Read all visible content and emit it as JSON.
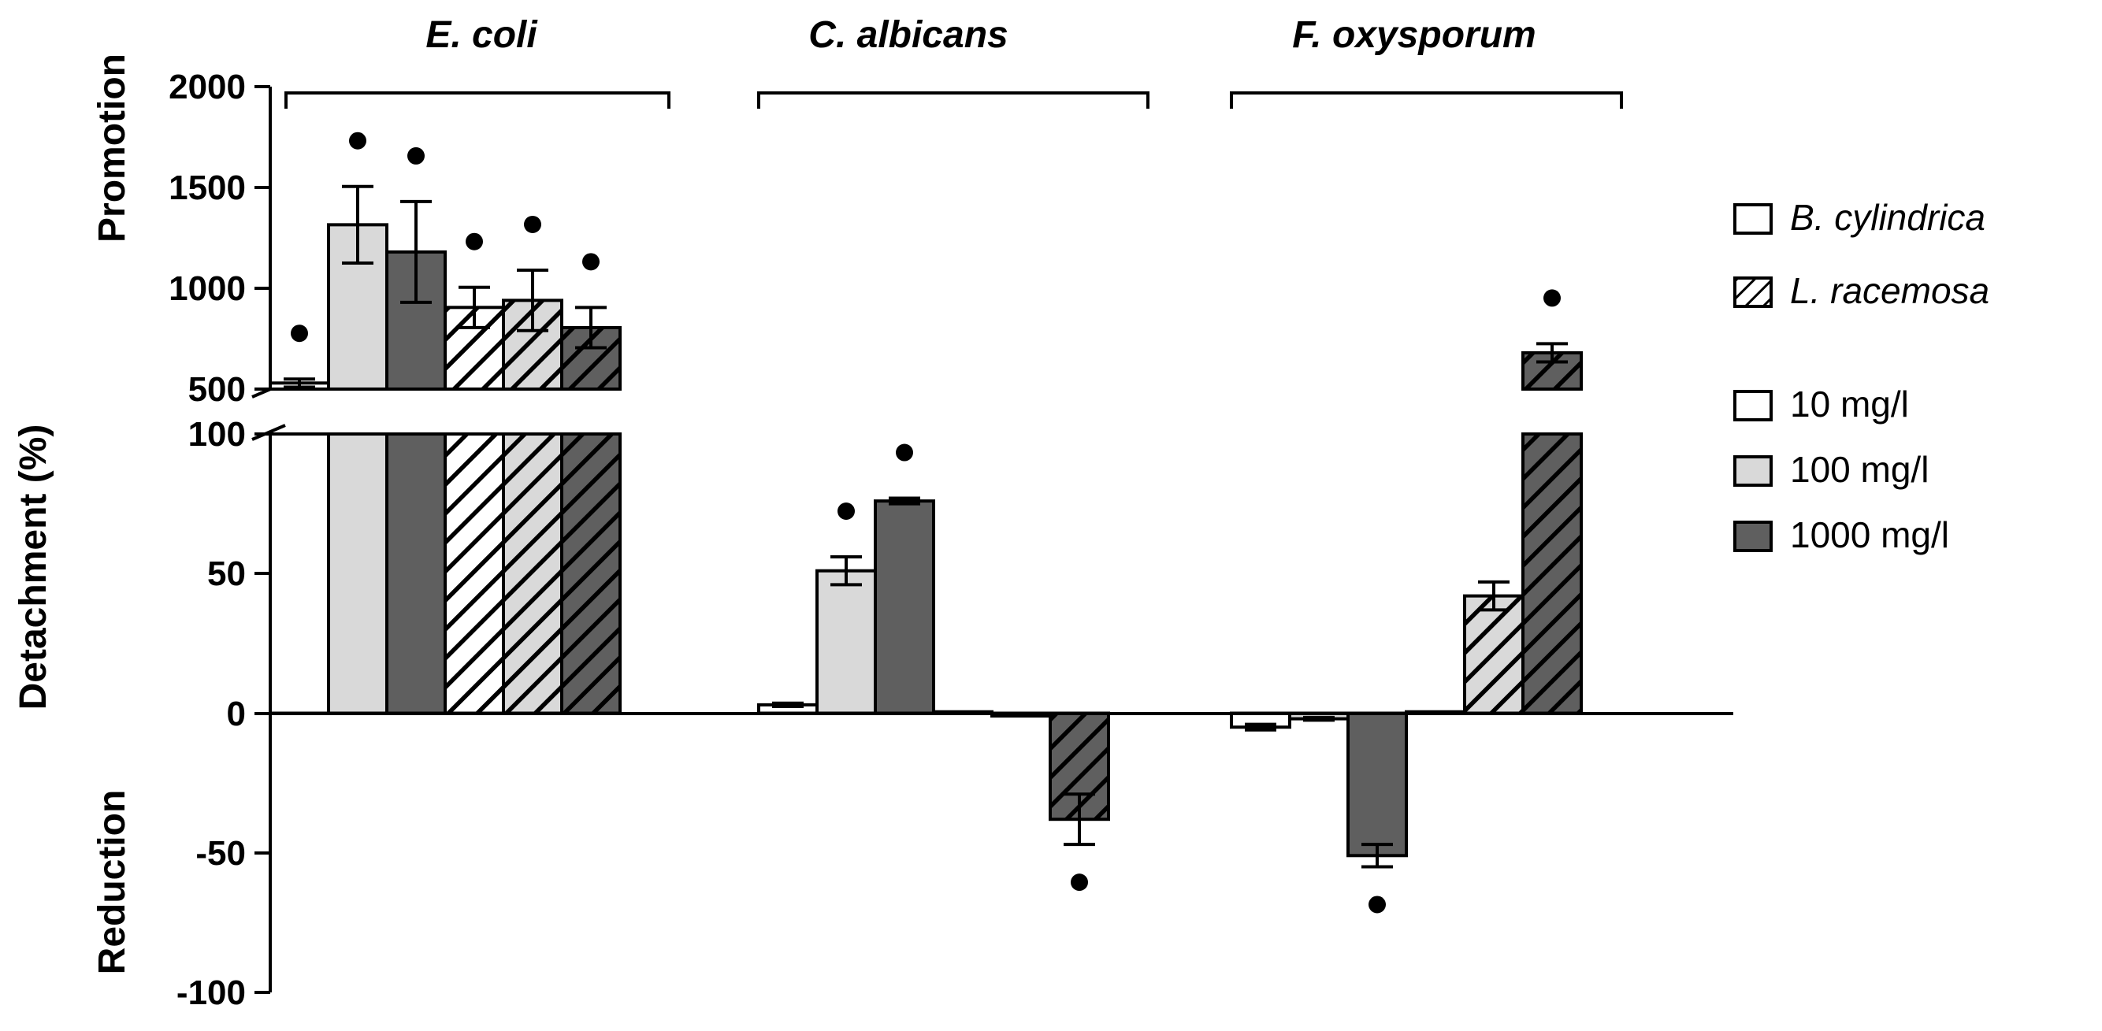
{
  "chart_data": {
    "type": "bar",
    "title": "",
    "ylabel": "Detachment (%)",
    "ylabel_upper": "Promotion",
    "ylabel_lower": "Reduction",
    "ylim_lower": [
      -100,
      100
    ],
    "ylim_upper": [
      500,
      2000
    ],
    "y_ticks_lower": [
      "100",
      "50",
      "0",
      "-50",
      "-100"
    ],
    "y_ticks_upper": [
      "2000",
      "1500",
      "1000",
      "500"
    ],
    "groups": [
      "E. coli",
      "C. albicans",
      "F. oxysporum"
    ],
    "colors": {
      "10 mg/l": "#ffffff",
      "100 mg/l": "#d9d9d9",
      "1000 mg/l": "#5f5f5f"
    },
    "legend": {
      "extracts": [
        "B. cylindrica",
        "L. racemosa"
      ],
      "concentrations": [
        "10 mg/l",
        "100 mg/l",
        "1000 mg/l"
      ]
    },
    "series": [
      {
        "extract": "B. cylindrica",
        "concentration": "10 mg/l",
        "values": [
          530,
          3,
          -5
        ],
        "errors": [
          20,
          0.6,
          1
        ],
        "significant": [
          true,
          false,
          false
        ]
      },
      {
        "extract": "B. cylindrica",
        "concentration": "100 mg/l",
        "values": [
          1315,
          51,
          -2
        ],
        "errors": [
          190,
          5,
          0.5
        ],
        "significant": [
          true,
          true,
          false
        ]
      },
      {
        "extract": "B. cylindrica",
        "concentration": "1000 mg/l",
        "values": [
          1180,
          76,
          -51
        ],
        "errors": [
          250,
          1,
          4
        ],
        "significant": [
          true,
          true,
          true
        ]
      },
      {
        "extract": "L. racemosa",
        "concentration": "10 mg/l",
        "values": [
          905,
          0.5,
          0.5
        ],
        "errors": [
          100,
          0.2,
          0.2
        ],
        "significant": [
          true,
          false,
          false
        ]
      },
      {
        "extract": "L. racemosa",
        "concentration": "100 mg/l",
        "values": [
          940,
          -1,
          42
        ],
        "errors": [
          150,
          0.3,
          5
        ],
        "significant": [
          true,
          false,
          false
        ]
      },
      {
        "extract": "L. racemosa",
        "concentration": "1000 mg/l",
        "values": [
          805,
          -38,
          680
        ],
        "errors": [
          100,
          9,
          45
        ],
        "significant": [
          true,
          true,
          true
        ]
      }
    ]
  }
}
